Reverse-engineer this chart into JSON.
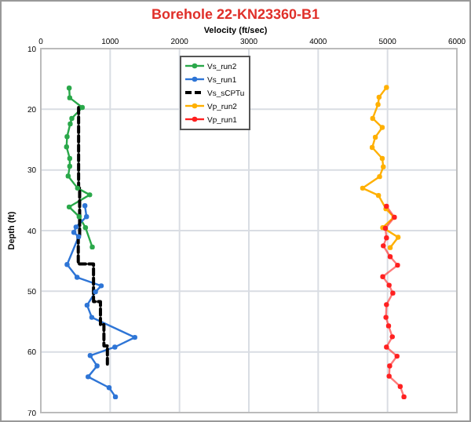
{
  "chart_data": {
    "type": "line",
    "title": "Borehole 22-KN23360-B1",
    "xlabel": "Velocity (ft/sec)",
    "ylabel": "Depth (ft)",
    "xlim": [
      0,
      6000
    ],
    "xticks": [
      0,
      1000,
      2000,
      3000,
      4000,
      5000,
      6000
    ],
    "ylim": [
      70,
      10
    ],
    "yticks": [
      10,
      20,
      30,
      40,
      50,
      60,
      70
    ],
    "grid": true,
    "legend": "top",
    "marker": "circle",
    "line_style": "solid",
    "series": [
      {
        "name": "Vs_run2",
        "color": "#2aa84a",
        "x": [
          409,
          417,
          598,
          447,
          424,
          379,
          371,
          417,
          417,
          394,
          530,
          705,
          409,
          553,
          644,
          742
        ],
        "values": [
          16.5,
          18.1,
          19.7,
          21.5,
          22.4,
          24.5,
          26.2,
          28.1,
          29.4,
          31.0,
          33.0,
          34.1,
          36.1,
          37.7,
          39.5,
          42.7
        ]
      },
      {
        "name": "Vs_run1",
        "color": "#2e75d6",
        "x": [
          636,
          659,
          508,
          477,
          545,
          379,
          523,
          871,
          788,
          667,
          735,
          1356,
          1068,
          712,
          811,
          682,
          985,
          1076
        ],
        "values": [
          35.9,
          37.7,
          39.4,
          40.3,
          41.0,
          45.6,
          47.7,
          49.1,
          50.1,
          52.3,
          54.3,
          57.6,
          59.2,
          60.6,
          62.3,
          64.1,
          65.9,
          67.4
        ]
      },
      {
        "name": "Vs_sCPTu",
        "color": "#000000",
        "marker": "none",
        "line_style": "dashed",
        "x": [
          545,
          545,
          560,
          560,
          540,
          540,
          760,
          760,
          860,
          860,
          910,
          910,
          960,
          960
        ],
        "values": [
          19.7,
          33,
          33,
          41,
          41,
          45.5,
          45.5,
          51.7,
          51.7,
          55.5,
          55.5,
          59,
          59,
          62
        ]
      },
      {
        "name": "Vp_run2",
        "color": "#ffb000",
        "x": [
          4985,
          4878,
          4863,
          4786,
          4924,
          4824,
          4779,
          4924,
          4939,
          4885,
          4641,
          4870,
          4977,
          5092,
          4931,
          5153,
          5038
        ],
        "values": [
          16.4,
          18.0,
          19.2,
          21.5,
          23.0,
          24.6,
          26.3,
          28.1,
          29.5,
          31.1,
          33.0,
          34.2,
          36.4,
          37.8,
          39.5,
          41.1,
          42.8
        ]
      },
      {
        "name": "Vp_run1",
        "color": "#ff2020",
        "x": [
          4985,
          5099,
          4969,
          4985,
          4939,
          5038,
          5145,
          4931,
          5023,
          5076,
          4985,
          4977,
          5015,
          5069,
          4985,
          5137,
          5031,
          5023,
          5183,
          5237
        ],
        "values": [
          36.0,
          37.8,
          39.6,
          41.2,
          42.5,
          44.3,
          45.7,
          47.6,
          49.0,
          50.3,
          52.2,
          54.3,
          55.7,
          57.5,
          59.2,
          60.7,
          62.3,
          64.0,
          65.7,
          67.4
        ]
      }
    ]
  }
}
